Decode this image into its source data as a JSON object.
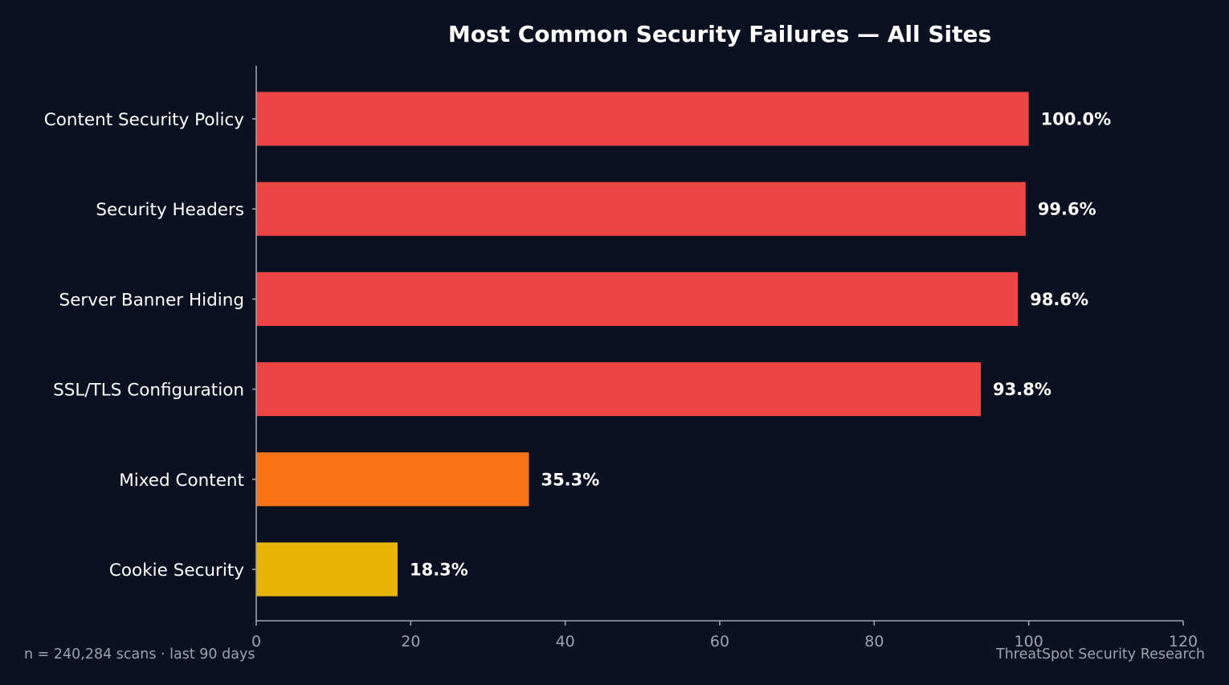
{
  "chart_data": {
    "type": "bar",
    "orientation": "horizontal",
    "title": "Most Common Security Failures — All Sites",
    "xlabel": "",
    "ylabel": "",
    "categories": [
      "Content Security Policy",
      "Security Headers",
      "Server Banner Hiding",
      "SSL/TLS Configuration",
      "Mixed Content",
      "Cookie Security"
    ],
    "values": [
      100.0,
      99.6,
      98.6,
      93.8,
      35.3,
      18.3
    ],
    "value_labels": [
      "100.0%",
      "99.6%",
      "98.6%",
      "93.8%",
      "35.3%",
      "18.3%"
    ],
    "bar_colors": [
      "#ef4444",
      "#ef4444",
      "#ef4444",
      "#ef4444",
      "#f97316",
      "#eab308"
    ],
    "xlim": [
      0,
      120
    ],
    "xticks": [
      0,
      20,
      40,
      60,
      80,
      100,
      120
    ],
    "grid": false,
    "legend": "none"
  },
  "footer": {
    "left": "n = 240,284 scans · last 90 days",
    "right": "ThreatSpot Security Research"
  },
  "colors": {
    "background": "#0b1120",
    "text": "#ffffff",
    "axis": "#9ca3af"
  }
}
